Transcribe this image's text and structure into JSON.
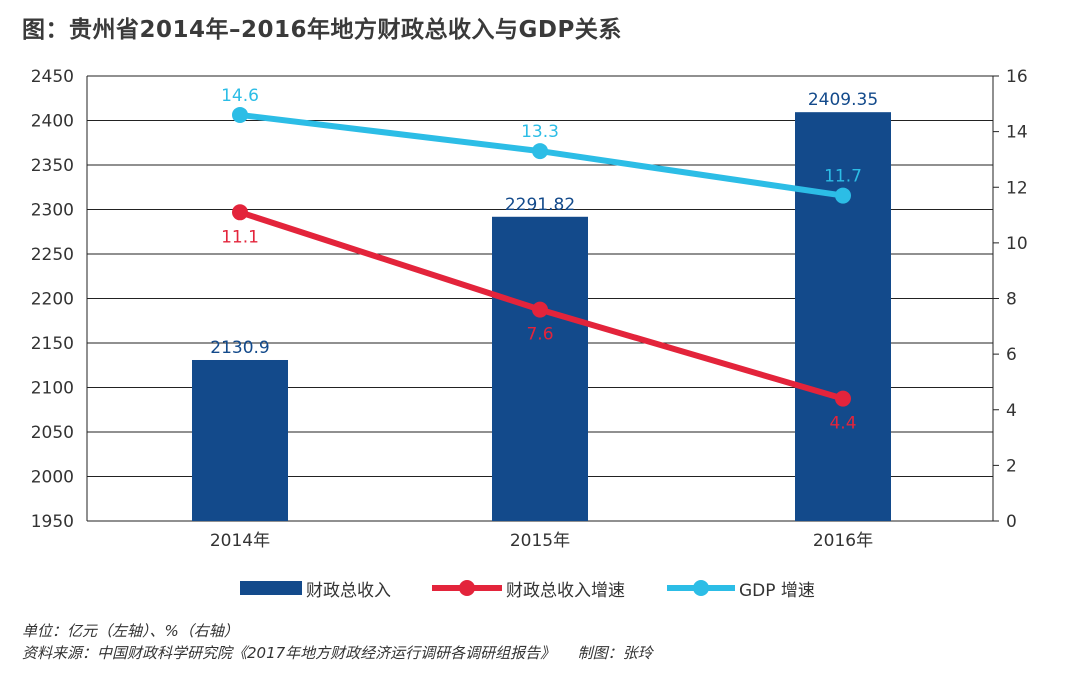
{
  "title": "图：贵州省2014年–2016年地方财政总收入与GDP关系",
  "footnote": {
    "unit": "单位：亿元（左轴）、%（右轴）",
    "source": "资料来源：中国财政科学研究院《2017年地方财政经济运行调研各调研组报告》　　制图：张玲"
  },
  "colors": {
    "bar": "#134a8b",
    "revenue_growth": "#e3243b",
    "gdp_growth": "#2cbde6",
    "grid": "#222222",
    "tick_text": "#333333"
  },
  "chart_data": {
    "type": "bar+line",
    "categories": [
      "2014年",
      "2015年",
      "2016年"
    ],
    "series": [
      {
        "name": "财政总收入",
        "kind": "bar",
        "axis": "left",
        "values": [
          2130.9,
          2291.82,
          2409.35
        ],
        "labels": [
          "2130.9",
          "2291.82",
          "2409.35"
        ]
      },
      {
        "name": "财政总收入增速",
        "kind": "line",
        "axis": "right",
        "values": [
          11.1,
          7.6,
          4.4
        ],
        "labels": [
          "11.1",
          "7.6",
          "4.4"
        ]
      },
      {
        "name": "GDP增速",
        "kind": "line",
        "axis": "right",
        "values": [
          14.6,
          13.3,
          11.7
        ],
        "labels": [
          "14.6",
          "13.3",
          "11.7"
        ]
      }
    ],
    "y_left": {
      "min": 1950,
      "max": 2450,
      "step": 50,
      "ticks": [
        "1950",
        "2000",
        "2050",
        "2100",
        "2150",
        "2200",
        "2250",
        "2300",
        "2350",
        "2400",
        "2450"
      ]
    },
    "y_right": {
      "min": 0,
      "max": 16,
      "step": 2,
      "ticks": [
        "0",
        "2",
        "4",
        "6",
        "8",
        "10",
        "12",
        "14",
        "16"
      ]
    },
    "grid": true,
    "legend_position": "bottom"
  },
  "legend": [
    {
      "label": "财政总收入"
    },
    {
      "label": "财政总收入增速"
    },
    {
      "label": "GDP 增速"
    }
  ]
}
